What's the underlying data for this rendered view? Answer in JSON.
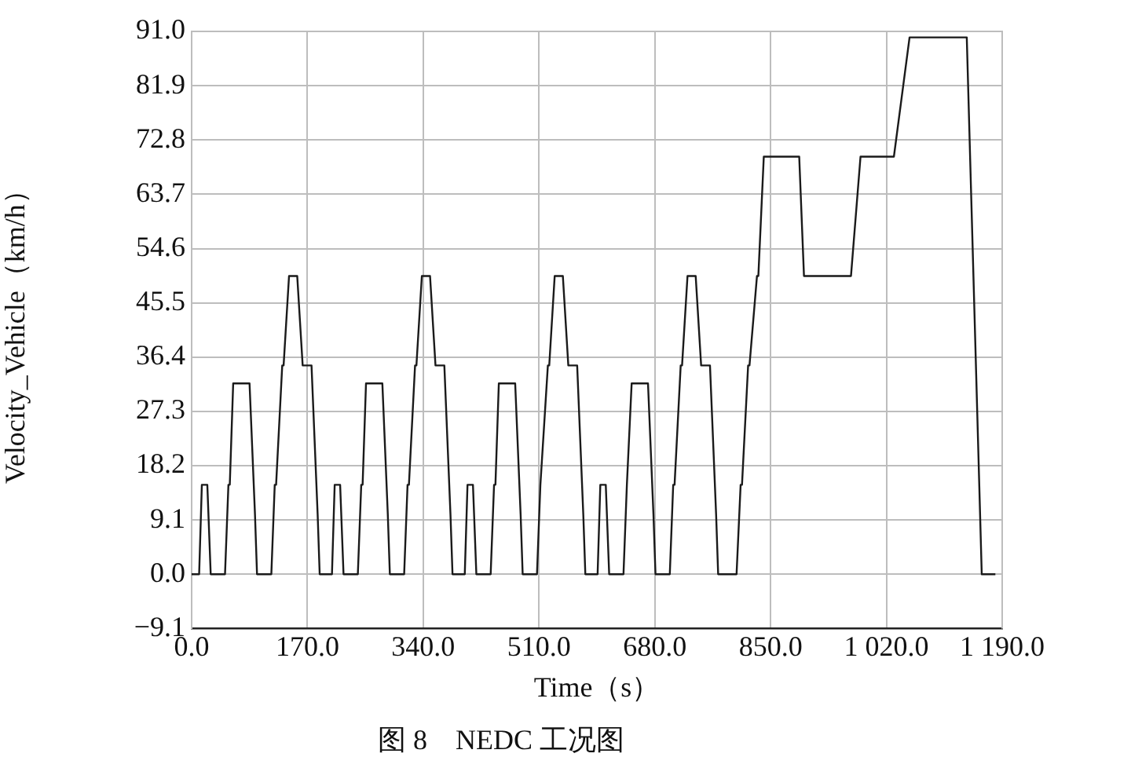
{
  "chart_data": {
    "type": "line",
    "title": "图 8　NEDC 工况图",
    "xlabel": "Time（s）",
    "ylabel": "Velocity_Vehicle（km/h）",
    "x": [
      0,
      11,
      15,
      23,
      28,
      49,
      54,
      56,
      61,
      85,
      93,
      96,
      117,
      122,
      124,
      133,
      135,
      143,
      155,
      163,
      176,
      185,
      188,
      195,
      206,
      210,
      218,
      223,
      244,
      249,
      251,
      256,
      280,
      288,
      291,
      312,
      317,
      319,
      328,
      330,
      338,
      350,
      358,
      371,
      380,
      383,
      390,
      401,
      405,
      413,
      418,
      439,
      444,
      446,
      451,
      475,
      483,
      486,
      507,
      512,
      514,
      523,
      525,
      533,
      545,
      553,
      566,
      575,
      578,
      585,
      596,
      600,
      608,
      613,
      634,
      639,
      641,
      646,
      670,
      678,
      681,
      702,
      707,
      709,
      718,
      720,
      728,
      740,
      748,
      761,
      770,
      773,
      780,
      800,
      806,
      808,
      817,
      819,
      830,
      832,
      840,
      892,
      899,
      968,
      982,
      1031,
      1054,
      1138,
      1160,
      1180
    ],
    "series": [
      {
        "color": "#1a1a1a",
        "values": [
          0,
          0,
          15,
          15,
          0,
          0,
          15,
          15,
          32,
          32,
          10,
          0,
          0,
          15,
          15,
          35,
          35,
          50,
          50,
          35,
          35,
          10,
          0,
          0,
          0,
          15,
          15,
          0,
          0,
          15,
          15,
          32,
          32,
          10,
          0,
          0,
          15,
          15,
          35,
          35,
          50,
          50,
          35,
          35,
          10,
          0,
          0,
          0,
          15,
          15,
          0,
          0,
          15,
          15,
          32,
          32,
          10,
          0,
          0,
          15,
          15,
          35,
          35,
          50,
          50,
          35,
          35,
          10,
          0,
          0,
          0,
          15,
          15,
          0,
          0,
          15,
          15,
          32,
          32,
          10,
          0,
          0,
          15,
          15,
          35,
          35,
          50,
          50,
          35,
          35,
          10,
          0,
          0,
          0,
          15,
          15,
          35,
          35,
          50,
          50,
          70,
          70,
          50,
          50,
          70,
          70,
          90,
          90,
          0,
          0
        ]
      }
    ],
    "xlim": [
      0,
      1190
    ],
    "xticks": [
      {
        "value": 0,
        "label": "0.0"
      },
      {
        "value": 170,
        "label": "170.0"
      },
      {
        "value": 340,
        "label": "340.0"
      },
      {
        "value": 510,
        "label": "510.0"
      },
      {
        "value": 680,
        "label": "680.0"
      },
      {
        "value": 850,
        "label": "850.0"
      },
      {
        "value": 1020,
        "label": "1 020.0"
      },
      {
        "value": 1190,
        "label": "1 190.0"
      }
    ],
    "ylim": [
      -9.1,
      91
    ],
    "yticks": [
      {
        "value": -9.1,
        "label": "−9.1"
      },
      {
        "value": 0,
        "label": "0.0"
      },
      9.1,
      18.2,
      27.3,
      36.4,
      45.5,
      54.6,
      63.7,
      72.8,
      81.9,
      {
        "value": 91,
        "label": "91.0"
      }
    ],
    "grid": true,
    "legend": false,
    "marker": "none",
    "line_style": "solid"
  }
}
